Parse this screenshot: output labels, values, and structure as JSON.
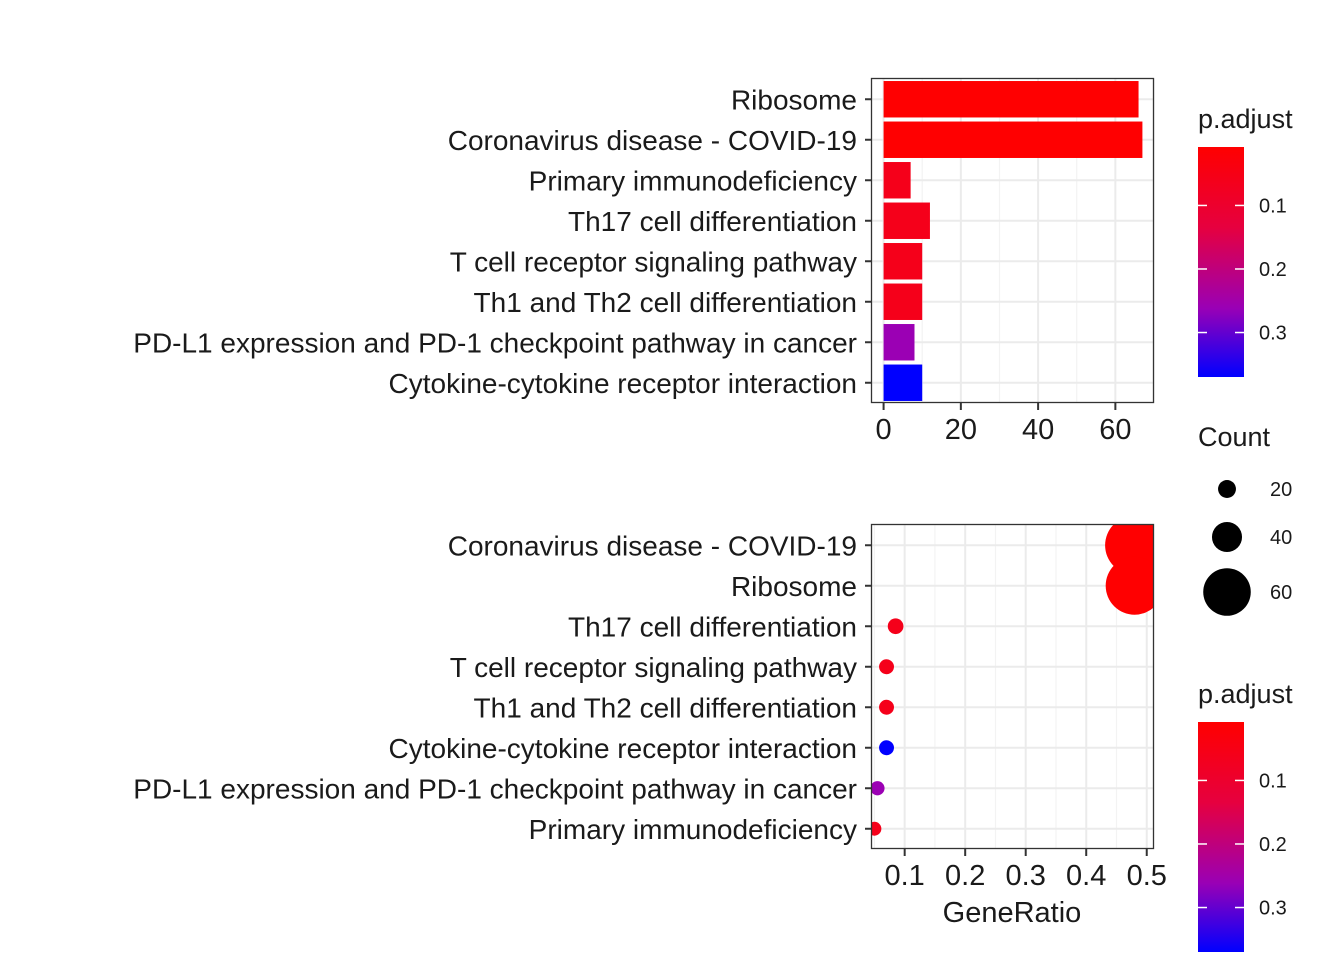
{
  "chart_data": [
    {
      "type": "bar",
      "categories": [
        "Ribosome",
        "Coronavirus disease - COVID-19",
        "Primary immunodeficiency",
        "Th17 cell differentiation",
        "T cell receptor signaling pathway",
        "Th1 and Th2 cell differentiation",
        "PD-L1 expression and PD-1 checkpoint pathway in cancer",
        "Cytokine-cytokine receptor interaction"
      ],
      "values": [
        66,
        67,
        7,
        12,
        10,
        10,
        8,
        10
      ],
      "p_adjust": [
        0.01,
        0.01,
        0.06,
        0.06,
        0.06,
        0.06,
        0.26,
        0.37
      ],
      "xlim": [
        -3,
        70
      ],
      "xticks": [
        0,
        20,
        40,
        60
      ],
      "xticklabels": [
        "0",
        "20",
        "40",
        "60"
      ],
      "xlabel": "",
      "ylabel": "",
      "grid": true,
      "legend": {
        "title": "p.adjust",
        "ticks": [
          0.1,
          0.2,
          0.3
        ],
        "ticklabels": [
          "0.1",
          "0.2",
          "0.3"
        ],
        "range": [
          0.008,
          0.37
        ],
        "low_color": "#ff0000",
        "high_color": "#0000ff",
        "position": "right"
      }
    },
    {
      "type": "scatter",
      "categories": [
        "Coronavirus disease - COVID-19",
        "Ribosome",
        "Th17 cell differentiation",
        "T cell receptor signaling pathway",
        "Th1 and Th2 cell differentiation",
        "Cytokine-cytokine receptor interaction",
        "PD-L1 expression and PD-1 checkpoint pathway in cancer",
        "Primary immunodeficiency"
      ],
      "gene_ratio": [
        0.48,
        0.48,
        0.085,
        0.07,
        0.07,
        0.07,
        0.055,
        0.05
      ],
      "count": [
        67,
        66,
        12,
        10,
        10,
        10,
        8,
        7
      ],
      "p_adjust": [
        0.01,
        0.01,
        0.06,
        0.06,
        0.06,
        0.37,
        0.26,
        0.06
      ],
      "xlim": [
        0.046,
        0.512
      ],
      "xticks": [
        0.1,
        0.2,
        0.3,
        0.4,
        0.5
      ],
      "xticklabels": [
        "0.1",
        "0.2",
        "0.3",
        "0.4",
        "0.5"
      ],
      "xlabel": "GeneRatio",
      "ylabel": "",
      "grid": true,
      "size_legend": {
        "title": "Count",
        "values": [
          20,
          40,
          60
        ],
        "labels": [
          "20",
          "40",
          "60"
        ],
        "position": "right"
      },
      "legend": {
        "title": "p.adjust",
        "ticks": [
          0.1,
          0.2,
          0.3
        ],
        "ticklabels": [
          "0.1",
          "0.2",
          "0.3"
        ],
        "range": [
          0.008,
          0.37
        ],
        "low_color": "#ff0000",
        "high_color": "#0000ff",
        "position": "right"
      }
    }
  ]
}
